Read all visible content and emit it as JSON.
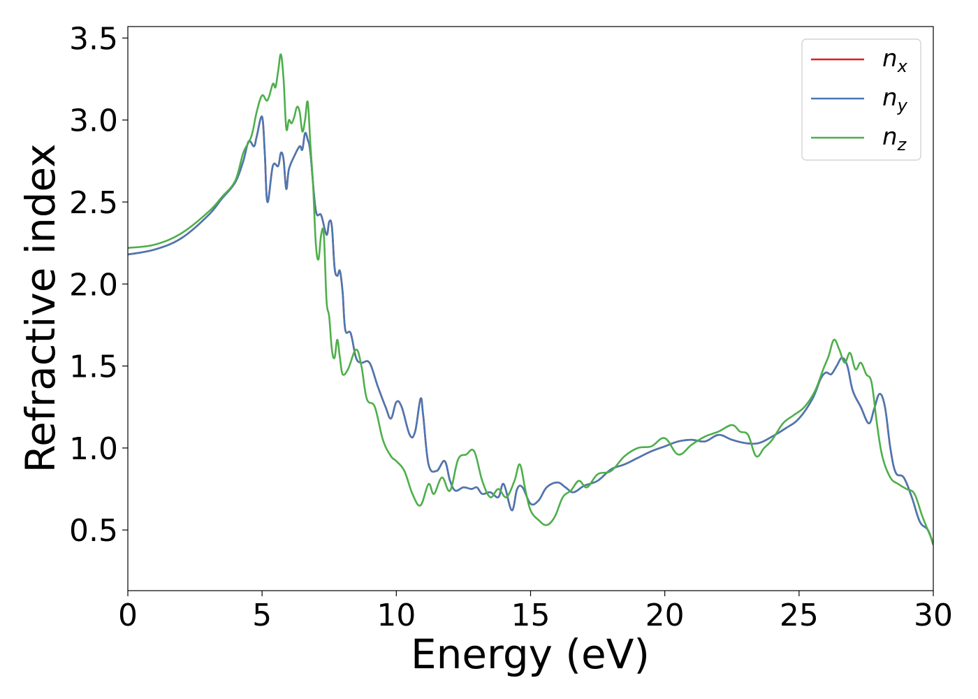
{
  "chart_data": {
    "type": "line",
    "title": "",
    "xlabel": "Energy (eV)",
    "ylabel": "Refractive index",
    "xlim": [
      0,
      30
    ],
    "ylim": [
      0.13,
      3.57
    ],
    "xticks": [
      0,
      5,
      10,
      15,
      20,
      25,
      30
    ],
    "xtick_labels": [
      "0",
      "5",
      "10",
      "15",
      "20",
      "25",
      "30"
    ],
    "yticks": [
      0.5,
      1.0,
      1.5,
      2.0,
      2.5,
      3.0,
      3.5
    ],
    "ytick_labels": [
      "0.5",
      "1.0",
      "1.5",
      "2.0",
      "2.5",
      "3.0",
      "3.5"
    ],
    "grid": false,
    "legend_position": "top-right",
    "series": [
      {
        "name": "n_x",
        "legend_base": "n",
        "legend_sub": "x",
        "color": "#e41a1c",
        "x": [
          0,
          1,
          2,
          3,
          3.5,
          4,
          4.3,
          4.5,
          4.7,
          4.8,
          5.0,
          5.1,
          5.2,
          5.4,
          5.6,
          5.7,
          5.8,
          5.9,
          6.0,
          6.2,
          6.4,
          6.5,
          6.6,
          6.7,
          6.8,
          7.0,
          7.2,
          7.4,
          7.5,
          7.6,
          7.7,
          7.8,
          7.9,
          8.0,
          8.1,
          8.3,
          8.5,
          8.7,
          9.0,
          9.3,
          9.6,
          9.8,
          10.0,
          10.2,
          10.5,
          10.7,
          10.9,
          11.0,
          11.2,
          11.5,
          11.8,
          12.0,
          12.2,
          12.5,
          12.8,
          13.0,
          13.2,
          13.5,
          13.8,
          14.0,
          14.3,
          14.5,
          14.7,
          15.0,
          15.3,
          15.6,
          16.0,
          16.3,
          16.6,
          17.0,
          17.5,
          18.0,
          18.5,
          19.0,
          19.5,
          20.0,
          20.5,
          21.0,
          21.5,
          22.0,
          22.5,
          23.0,
          23.5,
          24.0,
          24.5,
          25.0,
          25.5,
          25.8,
          26.0,
          26.2,
          26.4,
          26.6,
          26.8,
          27.0,
          27.3,
          27.6,
          27.8,
          28.0,
          28.2,
          28.4,
          28.6,
          28.9,
          29.2,
          29.5,
          29.8,
          30.0
        ],
        "y": [
          2.18,
          2.21,
          2.28,
          2.42,
          2.52,
          2.62,
          2.75,
          2.87,
          2.84,
          2.9,
          3.02,
          2.8,
          2.5,
          2.72,
          2.72,
          2.8,
          2.76,
          2.58,
          2.7,
          2.78,
          2.84,
          2.82,
          2.92,
          2.88,
          2.8,
          2.45,
          2.42,
          2.3,
          2.38,
          2.35,
          2.1,
          2.05,
          2.08,
          1.95,
          1.72,
          1.7,
          1.55,
          1.52,
          1.52,
          1.38,
          1.25,
          1.18,
          1.28,
          1.25,
          1.08,
          1.1,
          1.3,
          1.2,
          0.9,
          0.86,
          0.92,
          0.8,
          0.74,
          0.76,
          0.75,
          0.76,
          0.72,
          0.73,
          0.7,
          0.78,
          0.62,
          0.75,
          0.76,
          0.66,
          0.68,
          0.76,
          0.79,
          0.76,
          0.73,
          0.77,
          0.8,
          0.87,
          0.9,
          0.94,
          0.98,
          1.01,
          1.04,
          1.05,
          1.04,
          1.08,
          1.05,
          1.03,
          1.03,
          1.07,
          1.12,
          1.18,
          1.3,
          1.42,
          1.46,
          1.45,
          1.5,
          1.55,
          1.5,
          1.35,
          1.25,
          1.15,
          1.24,
          1.33,
          1.25,
          1.0,
          0.85,
          0.82,
          0.7,
          0.55,
          0.5,
          0.41
        ]
      },
      {
        "name": "n_y",
        "legend_base": "n",
        "legend_sub": "y",
        "color": "#4a78b3",
        "x": [
          0,
          1,
          2,
          3,
          3.5,
          4,
          4.3,
          4.5,
          4.7,
          4.8,
          5.0,
          5.1,
          5.2,
          5.4,
          5.6,
          5.7,
          5.8,
          5.9,
          6.0,
          6.2,
          6.4,
          6.5,
          6.6,
          6.7,
          6.8,
          7.0,
          7.2,
          7.4,
          7.5,
          7.6,
          7.7,
          7.8,
          7.9,
          8.0,
          8.1,
          8.3,
          8.5,
          8.7,
          9.0,
          9.3,
          9.6,
          9.8,
          10.0,
          10.2,
          10.5,
          10.7,
          10.9,
          11.0,
          11.2,
          11.5,
          11.8,
          12.0,
          12.2,
          12.5,
          12.8,
          13.0,
          13.2,
          13.5,
          13.8,
          14.0,
          14.3,
          14.5,
          14.7,
          15.0,
          15.3,
          15.6,
          16.0,
          16.3,
          16.6,
          17.0,
          17.5,
          18.0,
          18.5,
          19.0,
          19.5,
          20.0,
          20.5,
          21.0,
          21.5,
          22.0,
          22.5,
          23.0,
          23.5,
          24.0,
          24.5,
          25.0,
          25.5,
          25.8,
          26.0,
          26.2,
          26.4,
          26.6,
          26.8,
          27.0,
          27.3,
          27.6,
          27.8,
          28.0,
          28.2,
          28.4,
          28.6,
          28.9,
          29.2,
          29.5,
          29.8,
          30.0
        ],
        "y": [
          2.18,
          2.21,
          2.28,
          2.42,
          2.52,
          2.62,
          2.75,
          2.87,
          2.84,
          2.9,
          3.02,
          2.8,
          2.5,
          2.72,
          2.72,
          2.8,
          2.76,
          2.58,
          2.7,
          2.78,
          2.84,
          2.82,
          2.92,
          2.88,
          2.8,
          2.45,
          2.42,
          2.3,
          2.38,
          2.35,
          2.1,
          2.05,
          2.08,
          1.95,
          1.72,
          1.7,
          1.55,
          1.52,
          1.52,
          1.38,
          1.25,
          1.18,
          1.28,
          1.25,
          1.08,
          1.1,
          1.3,
          1.2,
          0.9,
          0.86,
          0.92,
          0.8,
          0.74,
          0.76,
          0.75,
          0.76,
          0.72,
          0.73,
          0.7,
          0.78,
          0.62,
          0.75,
          0.76,
          0.66,
          0.68,
          0.76,
          0.79,
          0.76,
          0.73,
          0.77,
          0.8,
          0.87,
          0.9,
          0.94,
          0.98,
          1.01,
          1.04,
          1.05,
          1.04,
          1.08,
          1.05,
          1.03,
          1.03,
          1.07,
          1.12,
          1.18,
          1.3,
          1.42,
          1.46,
          1.45,
          1.5,
          1.55,
          1.5,
          1.35,
          1.25,
          1.15,
          1.24,
          1.33,
          1.25,
          1.0,
          0.85,
          0.82,
          0.7,
          0.55,
          0.5,
          0.41
        ]
      },
      {
        "name": "n_z",
        "legend_base": "n",
        "legend_sub": "z",
        "color": "#4daf4a",
        "x": [
          0,
          1,
          2,
          3,
          3.5,
          4,
          4.3,
          4.6,
          4.8,
          5.0,
          5.2,
          5.4,
          5.5,
          5.6,
          5.7,
          5.8,
          5.9,
          6.0,
          6.1,
          6.2,
          6.3,
          6.4,
          6.5,
          6.6,
          6.7,
          6.8,
          6.9,
          7.0,
          7.1,
          7.2,
          7.3,
          7.4,
          7.5,
          7.6,
          7.7,
          7.8,
          7.9,
          8.0,
          8.2,
          8.5,
          8.7,
          8.9,
          9.2,
          9.5,
          9.8,
          10.0,
          10.3,
          10.6,
          10.9,
          11.2,
          11.4,
          11.7,
          12.0,
          12.3,
          12.6,
          12.9,
          13.2,
          13.5,
          13.8,
          14.1,
          14.4,
          14.6,
          14.8,
          15.0,
          15.3,
          15.6,
          15.9,
          16.2,
          16.5,
          16.8,
          17.1,
          17.5,
          18.0,
          18.5,
          19.0,
          19.5,
          20.0,
          20.5,
          21.0,
          21.5,
          22.0,
          22.5,
          22.8,
          23.1,
          23.4,
          23.7,
          24.0,
          24.4,
          24.8,
          25.2,
          25.6,
          25.9,
          26.1,
          26.3,
          26.5,
          26.7,
          26.9,
          27.1,
          27.3,
          27.5,
          27.7,
          27.9,
          28.1,
          28.4,
          28.7,
          29.0,
          29.3,
          29.6,
          30.0
        ],
        "y": [
          2.22,
          2.24,
          2.31,
          2.44,
          2.53,
          2.63,
          2.8,
          2.9,
          3.05,
          3.15,
          3.12,
          3.22,
          3.2,
          3.3,
          3.4,
          3.25,
          2.95,
          3.0,
          2.98,
          3.02,
          3.08,
          3.05,
          2.93,
          3.0,
          3.11,
          2.85,
          2.6,
          2.25,
          2.15,
          2.3,
          2.3,
          1.9,
          1.8,
          1.6,
          1.55,
          1.66,
          1.55,
          1.45,
          1.48,
          1.6,
          1.5,
          1.3,
          1.25,
          1.05,
          0.95,
          0.92,
          0.86,
          0.72,
          0.65,
          0.78,
          0.72,
          0.82,
          0.74,
          0.93,
          0.96,
          0.98,
          0.8,
          0.7,
          0.75,
          0.7,
          0.8,
          0.9,
          0.75,
          0.62,
          0.56,
          0.53,
          0.58,
          0.7,
          0.74,
          0.8,
          0.76,
          0.84,
          0.86,
          0.95,
          1.0,
          1.01,
          1.06,
          0.96,
          1.02,
          1.07,
          1.1,
          1.14,
          1.1,
          1.08,
          0.95,
          1.0,
          1.05,
          1.15,
          1.2,
          1.25,
          1.35,
          1.48,
          1.56,
          1.66,
          1.6,
          1.52,
          1.58,
          1.48,
          1.52,
          1.45,
          1.4,
          1.15,
          0.95,
          0.82,
          0.78,
          0.75,
          0.72,
          0.58,
          0.42
        ]
      }
    ]
  }
}
